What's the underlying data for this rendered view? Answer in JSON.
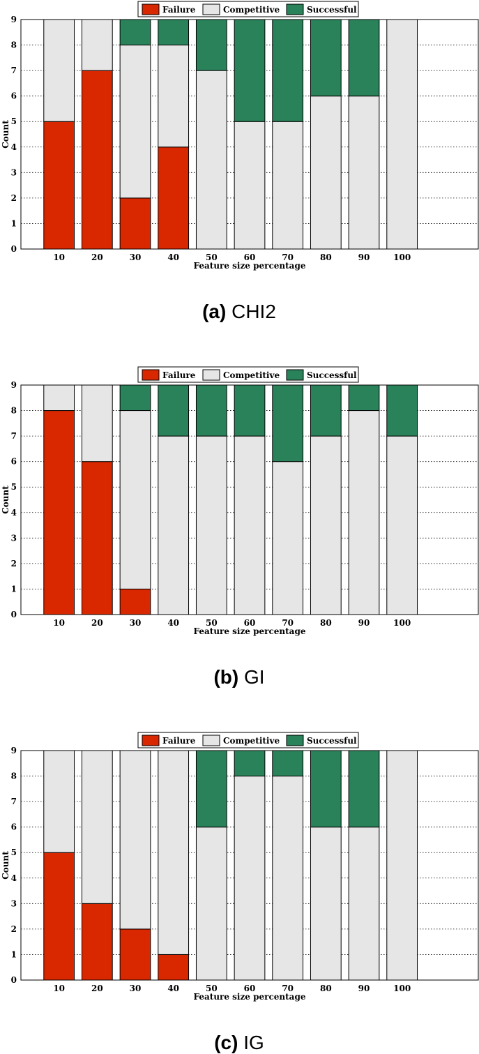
{
  "colors": {
    "Failure": "#d92800",
    "Competitive": "#e6e6e6",
    "Successful": "#2a825a"
  },
  "chart_data": [
    {
      "type": "bar",
      "stacked": true,
      "caption_letter": "(a)",
      "caption_text": " CHI2",
      "categories": [
        "10",
        "20",
        "30",
        "40",
        "50",
        "60",
        "70",
        "80",
        "90",
        "100"
      ],
      "series": [
        {
          "name": "Failure",
          "values": [
            5,
            7,
            2,
            4,
            0,
            0,
            0,
            0,
            0,
            0
          ]
        },
        {
          "name": "Competitive",
          "values": [
            4,
            2,
            6,
            4,
            7,
            5,
            5,
            6,
            6,
            9
          ]
        },
        {
          "name": "Successful",
          "values": [
            0,
            0,
            1,
            1,
            2,
            4,
            4,
            3,
            3,
            0
          ]
        }
      ],
      "xlabel": "Feature size percentage",
      "ylabel": "Count",
      "ylim": [
        0,
        9
      ],
      "yticks": [
        "0",
        "1",
        "2",
        "3",
        "4",
        "5",
        "6",
        "7",
        "8",
        "9"
      ],
      "grid": "dotted horizontal",
      "legend": "top-center"
    },
    {
      "type": "bar",
      "stacked": true,
      "caption_letter": "(b)",
      "caption_text": " GI",
      "categories": [
        "10",
        "20",
        "30",
        "40",
        "50",
        "60",
        "70",
        "80",
        "90",
        "100"
      ],
      "series": [
        {
          "name": "Failure",
          "values": [
            8,
            6,
            1,
            0,
            0,
            0,
            0,
            0,
            0,
            0
          ]
        },
        {
          "name": "Competitive",
          "values": [
            1,
            3,
            7,
            7,
            7,
            7,
            6,
            7,
            8,
            7
          ]
        },
        {
          "name": "Successful",
          "values": [
            0,
            0,
            1,
            2,
            2,
            2,
            3,
            2,
            1,
            2
          ]
        }
      ],
      "xlabel": "Feature size percentage",
      "ylabel": "Count",
      "ylim": [
        0,
        9
      ],
      "yticks": [
        "0",
        "1",
        "2",
        "3",
        "4",
        "5",
        "6",
        "7",
        "8",
        "9"
      ],
      "grid": "dotted horizontal",
      "legend": "top-center"
    },
    {
      "type": "bar",
      "stacked": true,
      "caption_letter": "(c)",
      "caption_text": " IG",
      "categories": [
        "10",
        "20",
        "30",
        "40",
        "50",
        "60",
        "70",
        "80",
        "90",
        "100"
      ],
      "series": [
        {
          "name": "Failure",
          "values": [
            5,
            3,
            2,
            1,
            0,
            0,
            0,
            0,
            0,
            0
          ]
        },
        {
          "name": "Competitive",
          "values": [
            4,
            6,
            7,
            8,
            6,
            8,
            8,
            6,
            6,
            9
          ]
        },
        {
          "name": "Successful",
          "values": [
            0,
            0,
            0,
            0,
            3,
            1,
            1,
            3,
            3,
            0
          ]
        }
      ],
      "xlabel": "Feature size percentage",
      "ylabel": "Count",
      "ylim": [
        0,
        9
      ],
      "yticks": [
        "0",
        "1",
        "2",
        "3",
        "4",
        "5",
        "6",
        "7",
        "8",
        "9"
      ],
      "grid": "dotted horizontal",
      "legend": "top-center"
    }
  ]
}
